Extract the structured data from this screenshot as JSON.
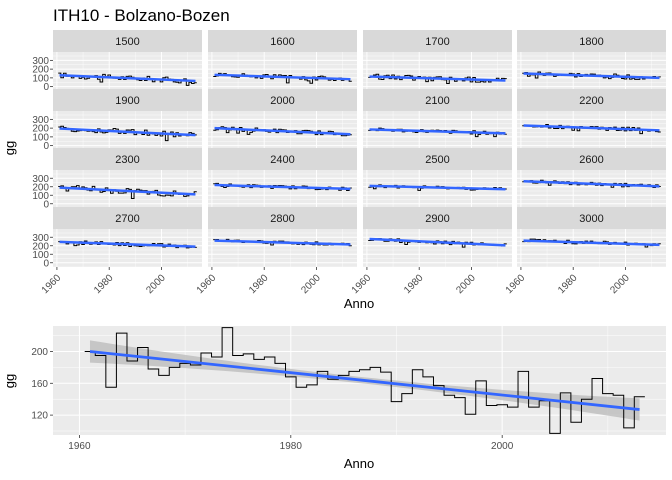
{
  "chart_data": [
    {
      "type": "line",
      "title": "ITH10 - Bolzano-Bozen",
      "xlabel": "Anno",
      "ylabel": "gg",
      "xlim": [
        1961,
        2013
      ],
      "ylim": [
        -50,
        350
      ],
      "x_ticks": [
        1960,
        1980,
        2000
      ],
      "y_ticks": [
        0,
        100,
        200,
        300
      ],
      "grid": true,
      "layout": "facet-wrap 4x4",
      "panels": [
        {
          "label": "1500",
          "start": 130,
          "end": 65,
          "noise": 32
        },
        {
          "label": "1600",
          "start": 135,
          "end": 85,
          "noise": 25
        },
        {
          "label": "1700",
          "start": 115,
          "end": 70,
          "noise": 30
        },
        {
          "label": "1800",
          "start": 150,
          "end": 100,
          "noise": 28
        },
        {
          "label": "1900",
          "start": 195,
          "end": 120,
          "noise": 32
        },
        {
          "label": "2000",
          "start": 200,
          "end": 130,
          "noise": 24
        },
        {
          "label": "2100",
          "start": 185,
          "end": 140,
          "noise": 20
        },
        {
          "label": "2200",
          "start": 230,
          "end": 175,
          "noise": 22
        },
        {
          "label": "2300",
          "start": 190,
          "end": 110,
          "noise": 38
        },
        {
          "label": "2400",
          "start": 220,
          "end": 175,
          "noise": 20
        },
        {
          "label": "2500",
          "start": 210,
          "end": 170,
          "noise": 20
        },
        {
          "label": "2600",
          "start": 265,
          "end": 205,
          "noise": 20
        },
        {
          "label": "2700",
          "start": 245,
          "end": 190,
          "noise": 22
        },
        {
          "label": "2800",
          "start": 260,
          "end": 215,
          "noise": 20
        },
        {
          "label": "2900",
          "start": 280,
          "end": 205,
          "noise": 18
        },
        {
          "label": "3000",
          "start": 260,
          "end": 210,
          "noise": 22
        }
      ]
    },
    {
      "type": "line",
      "xlabel": "Anno",
      "ylabel": "gg",
      "xlim": [
        1957.5,
        2015.5
      ],
      "ylim": [
        95,
        232
      ],
      "x_ticks": [
        1960,
        1980,
        2000
      ],
      "y_ticks": [
        120,
        160,
        200
      ],
      "grid": true,
      "trend": {
        "x": [
          1961,
          2013
        ],
        "y": [
          200,
          127
        ]
      },
      "x": [
        1961,
        1962,
        1963,
        1964,
        1965,
        1966,
        1967,
        1968,
        1969,
        1970,
        1971,
        1972,
        1973,
        1974,
        1975,
        1976,
        1977,
        1978,
        1979,
        1980,
        1981,
        1982,
        1983,
        1984,
        1985,
        1986,
        1987,
        1988,
        1989,
        1990,
        1991,
        1992,
        1993,
        1994,
        1995,
        1996,
        1997,
        1998,
        1999,
        2000,
        2001,
        2002,
        2003,
        2004,
        2005,
        2006,
        2007,
        2008,
        2009,
        2010,
        2011,
        2012,
        2013
      ],
      "y": [
        200,
        195,
        155,
        223,
        188,
        205,
        178,
        170,
        180,
        185,
        183,
        198,
        193,
        230,
        195,
        197,
        190,
        193,
        185,
        168,
        155,
        158,
        175,
        165,
        170,
        175,
        177,
        180,
        174,
        137,
        147,
        177,
        168,
        157,
        145,
        142,
        121,
        163,
        132,
        133,
        130,
        175,
        130,
        138,
        97,
        148,
        111,
        140,
        166,
        147,
        145,
        104,
        143
      ]
    }
  ]
}
